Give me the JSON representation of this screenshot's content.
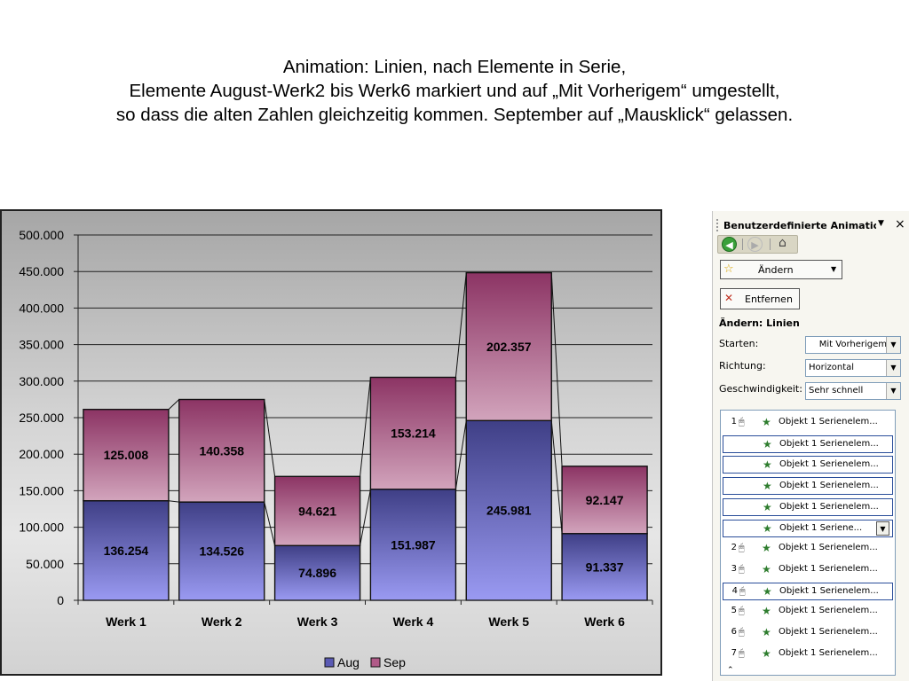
{
  "slide": {
    "title_lines": [
      "Animation: Linien, nach Elemente in Serie,",
      "Elemente August-Werk2 bis Werk6 markiert und auf „Mit Vorherigem“ umgestellt,",
      "so dass die alten Zahlen gleichzeitig kommen. September auf „Mausklick“ gelassen."
    ]
  },
  "chart_data": {
    "type": "bar",
    "stacked": true,
    "categories": [
      "Werk 1",
      "Werk 2",
      "Werk 3",
      "Werk 4",
      "Werk 5",
      "Werk 6"
    ],
    "series": [
      {
        "name": "Aug",
        "values": [
          136254,
          134526,
          74896,
          151987,
          245981,
          91337
        ],
        "labels": [
          "136.254",
          "134.526",
          "74.896",
          "151.987",
          "245.981",
          "91.337"
        ],
        "color": "#6b6bbd"
      },
      {
        "name": "Sep",
        "values": [
          125008,
          140358,
          94621,
          153214,
          202357,
          92147
        ],
        "labels": [
          "125.008",
          "140.358",
          "94.621",
          "153.214",
          "202.357",
          "92.147"
        ],
        "color": "#b06a8e"
      }
    ],
    "ylim": [
      0,
      500000
    ],
    "y_ticks": [
      0,
      50000,
      100000,
      150000,
      200000,
      250000,
      300000,
      350000,
      400000,
      450000,
      500000
    ],
    "y_tick_labels": [
      "0",
      "50.000",
      "100.000",
      "150.000",
      "200.000",
      "250.000",
      "300.000",
      "350.000",
      "400.000",
      "450.000",
      "500.000"
    ],
    "grid": true,
    "series_lines": true,
    "legend_position": "bottom",
    "title": "",
    "xlabel": "",
    "ylabel": ""
  },
  "task_pane": {
    "title": "Benutzerdefinierte Animation",
    "close_icon": "×",
    "menu_arrow": "▼",
    "nav": {
      "back_icon": "◀",
      "forward_icon": "▶",
      "home_icon": "⌂"
    },
    "change_button": {
      "icon": "☆",
      "label": "Ändern",
      "arrow": "▼"
    },
    "remove_button": {
      "icon": "✕",
      "label": "Entfernen"
    },
    "effect_heading": "Ändern: Linien",
    "start": {
      "label": "Starten:",
      "value": "Mit Vorherigem"
    },
    "direction": {
      "label": "Richtung:",
      "value": "Horizontal"
    },
    "speed": {
      "label": "Geschwindigkeit:",
      "value": "Sehr schnell"
    },
    "select_arrow": "▼",
    "mouse_icon": "🖱",
    "star_icon": "★",
    "effects": [
      {
        "num": "1",
        "trigger": "mouse",
        "label": "Objekt 1 Serienelem...",
        "selected": false,
        "dropdown": false
      },
      {
        "num": "",
        "trigger": "",
        "label": "Objekt 1 Serienelem...",
        "selected": true,
        "dropdown": false
      },
      {
        "num": "",
        "trigger": "",
        "label": "Objekt 1 Serienelem...",
        "selected": true,
        "dropdown": false
      },
      {
        "num": "",
        "trigger": "",
        "label": "Objekt 1 Serienelem...",
        "selected": true,
        "dropdown": false
      },
      {
        "num": "",
        "trigger": "",
        "label": "Objekt 1 Serienelem...",
        "selected": true,
        "dropdown": false
      },
      {
        "num": "",
        "trigger": "",
        "label": "Objekt 1 Seriene...",
        "selected": true,
        "dropdown": true
      },
      {
        "num": "2",
        "trigger": "mouse",
        "label": "Objekt 1 Serienelem...",
        "selected": false,
        "dropdown": false
      },
      {
        "num": "3",
        "trigger": "mouse",
        "label": "Objekt 1 Serienelem...",
        "selected": false,
        "dropdown": false
      },
      {
        "num": "4",
        "trigger": "mouse",
        "label": "Objekt 1 Serienelem...",
        "selected": true,
        "dropdown": false
      },
      {
        "num": "5",
        "trigger": "mouse",
        "label": "Objekt 1 Serienelem...",
        "selected": false,
        "dropdown": false
      },
      {
        "num": "6",
        "trigger": "mouse",
        "label": "Objekt 1 Serienelem...",
        "selected": false,
        "dropdown": false
      },
      {
        "num": "7",
        "trigger": "mouse",
        "label": "Objekt 1 Serienelem...",
        "selected": false,
        "dropdown": false
      }
    ],
    "scroll_up_icon": "⌃"
  }
}
